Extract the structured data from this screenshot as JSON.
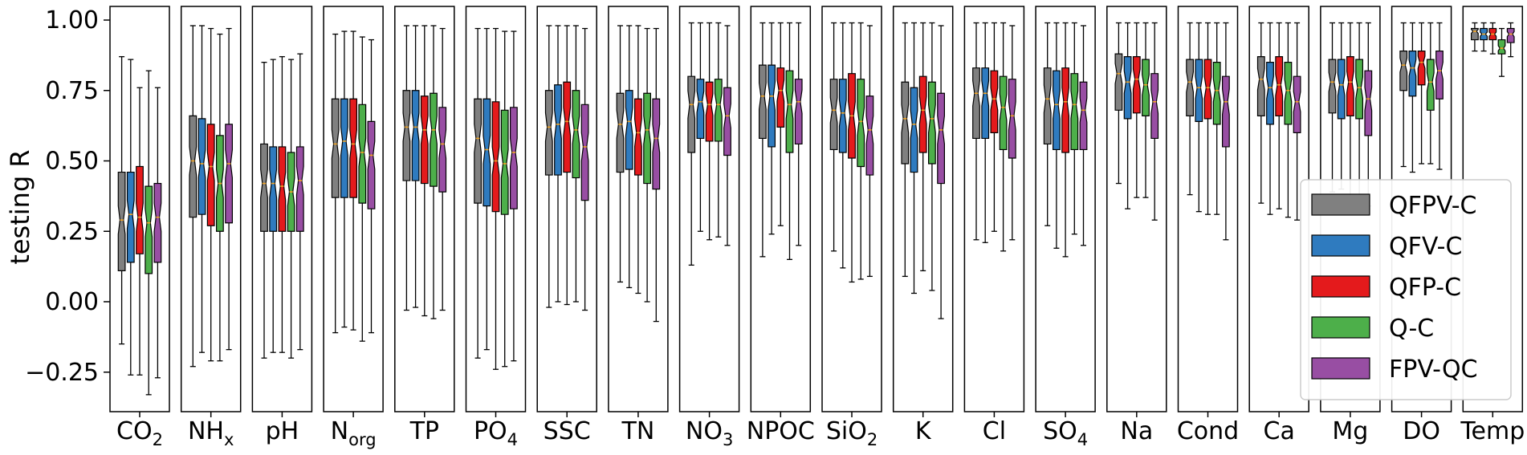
{
  "chart_data": {
    "type": "box",
    "ylabel": "testing R",
    "ylim": [
      -0.4,
      1.05
    ],
    "yticks": [
      "1.00",
      "0.75",
      "0.50",
      "0.25",
      "0.00",
      "−0.25"
    ],
    "ytick_values": [
      1.0,
      0.75,
      0.5,
      0.25,
      0.0,
      -0.25
    ],
    "legend_position": "right",
    "series": [
      {
        "name": "QFPV-C",
        "color": "#808080"
      },
      {
        "name": "QFV-C",
        "color": "#2f7bbf"
      },
      {
        "name": "QFP-C",
        "color": "#e41a1c"
      },
      {
        "name": "Q-C",
        "color": "#4daf4a"
      },
      {
        "name": "FPV-QC",
        "color": "#984ea3"
      }
    ],
    "categories": [
      {
        "base": "CO",
        "sub": "2",
        "boxes": [
          {
            "q1": 0.11,
            "med": 0.29,
            "q3": 0.46,
            "wlo": -0.15,
            "whi": 0.87
          },
          {
            "q1": 0.14,
            "med": 0.31,
            "q3": 0.46,
            "wlo": -0.26,
            "whi": 0.86
          },
          {
            "q1": 0.17,
            "med": 0.3,
            "q3": 0.48,
            "wlo": -0.26,
            "whi": 0.76
          },
          {
            "q1": 0.1,
            "med": 0.28,
            "q3": 0.41,
            "wlo": -0.33,
            "whi": 0.82
          },
          {
            "q1": 0.14,
            "med": 0.3,
            "q3": 0.42,
            "wlo": -0.27,
            "whi": 0.76
          }
        ]
      },
      {
        "base": "NH",
        "sub": "x",
        "boxes": [
          {
            "q1": 0.3,
            "med": 0.5,
            "q3": 0.66,
            "wlo": -0.23,
            "whi": 0.98
          },
          {
            "q1": 0.31,
            "med": 0.49,
            "q3": 0.65,
            "wlo": -0.18,
            "whi": 0.98
          },
          {
            "q1": 0.27,
            "med": 0.48,
            "q3": 0.63,
            "wlo": -0.21,
            "whi": 0.97
          },
          {
            "q1": 0.25,
            "med": 0.42,
            "q3": 0.59,
            "wlo": -0.21,
            "whi": 0.95
          },
          {
            "q1": 0.28,
            "med": 0.49,
            "q3": 0.63,
            "wlo": -0.17,
            "whi": 0.97
          }
        ]
      },
      {
        "base": "pH",
        "sub": "",
        "boxes": [
          {
            "q1": 0.25,
            "med": 0.42,
            "q3": 0.56,
            "wlo": -0.2,
            "whi": 0.85
          },
          {
            "q1": 0.25,
            "med": 0.42,
            "q3": 0.55,
            "wlo": -0.18,
            "whi": 0.86
          },
          {
            "q1": 0.25,
            "med": 0.41,
            "q3": 0.55,
            "wlo": -0.18,
            "whi": 0.87
          },
          {
            "q1": 0.25,
            "med": 0.39,
            "q3": 0.53,
            "wlo": -0.2,
            "whi": 0.86
          },
          {
            "q1": 0.25,
            "med": 0.43,
            "q3": 0.55,
            "wlo": -0.17,
            "whi": 0.88
          }
        ]
      },
      {
        "base": "N",
        "sub": "org",
        "boxes": [
          {
            "q1": 0.37,
            "med": 0.56,
            "q3": 0.72,
            "wlo": -0.11,
            "whi": 0.95
          },
          {
            "q1": 0.37,
            "med": 0.57,
            "q3": 0.72,
            "wlo": -0.09,
            "whi": 0.96
          },
          {
            "q1": 0.37,
            "med": 0.56,
            "q3": 0.72,
            "wlo": -0.1,
            "whi": 0.96
          },
          {
            "q1": 0.35,
            "med": 0.53,
            "q3": 0.7,
            "wlo": -0.14,
            "whi": 0.94
          },
          {
            "q1": 0.33,
            "med": 0.52,
            "q3": 0.64,
            "wlo": -0.11,
            "whi": 0.93
          }
        ]
      },
      {
        "base": "TP",
        "sub": "",
        "boxes": [
          {
            "q1": 0.43,
            "med": 0.62,
            "q3": 0.75,
            "wlo": -0.03,
            "whi": 0.98
          },
          {
            "q1": 0.43,
            "med": 0.62,
            "q3": 0.75,
            "wlo": -0.02,
            "whi": 0.98
          },
          {
            "q1": 0.42,
            "med": 0.61,
            "q3": 0.73,
            "wlo": -0.05,
            "whi": 0.98
          },
          {
            "q1": 0.41,
            "med": 0.61,
            "q3": 0.74,
            "wlo": -0.06,
            "whi": 0.98
          },
          {
            "q1": 0.39,
            "med": 0.56,
            "q3": 0.69,
            "wlo": -0.03,
            "whi": 0.97
          }
        ]
      },
      {
        "base": "PO",
        "sub": "4",
        "boxes": [
          {
            "q1": 0.35,
            "med": 0.58,
            "q3": 0.72,
            "wlo": -0.2,
            "whi": 0.97
          },
          {
            "q1": 0.34,
            "med": 0.54,
            "q3": 0.72,
            "wlo": -0.17,
            "whi": 0.97
          },
          {
            "q1": 0.32,
            "med": 0.5,
            "q3": 0.71,
            "wlo": -0.24,
            "whi": 0.97
          },
          {
            "q1": 0.31,
            "med": 0.49,
            "q3": 0.68,
            "wlo": -0.23,
            "whi": 0.96
          },
          {
            "q1": 0.33,
            "med": 0.53,
            "q3": 0.69,
            "wlo": -0.21,
            "whi": 0.96
          }
        ]
      },
      {
        "base": "SSC",
        "sub": "",
        "boxes": [
          {
            "q1": 0.45,
            "med": 0.62,
            "q3": 0.75,
            "wlo": -0.02,
            "whi": 0.98
          },
          {
            "q1": 0.45,
            "med": 0.63,
            "q3": 0.77,
            "wlo": 0.0,
            "whi": 0.98
          },
          {
            "q1": 0.46,
            "med": 0.64,
            "q3": 0.78,
            "wlo": -0.01,
            "whi": 0.98
          },
          {
            "q1": 0.44,
            "med": 0.61,
            "q3": 0.75,
            "wlo": 0.0,
            "whi": 0.98
          },
          {
            "q1": 0.36,
            "med": 0.55,
            "q3": 0.7,
            "wlo": -0.03,
            "whi": 0.97
          }
        ]
      },
      {
        "base": "TN",
        "sub": "",
        "boxes": [
          {
            "q1": 0.46,
            "med": 0.63,
            "q3": 0.74,
            "wlo": 0.07,
            "whi": 0.98
          },
          {
            "q1": 0.47,
            "med": 0.64,
            "q3": 0.75,
            "wlo": 0.05,
            "whi": 0.98
          },
          {
            "q1": 0.45,
            "med": 0.6,
            "q3": 0.72,
            "wlo": 0.03,
            "whi": 0.98
          },
          {
            "q1": 0.42,
            "med": 0.61,
            "q3": 0.74,
            "wlo": 0.0,
            "whi": 0.97
          },
          {
            "q1": 0.4,
            "med": 0.58,
            "q3": 0.72,
            "wlo": -0.07,
            "whi": 0.97
          }
        ]
      },
      {
        "base": "NO",
        "sub": "3",
        "boxes": [
          {
            "q1": 0.53,
            "med": 0.7,
            "q3": 0.8,
            "wlo": 0.13,
            "whi": 0.99
          },
          {
            "q1": 0.58,
            "med": 0.71,
            "q3": 0.79,
            "wlo": 0.25,
            "whi": 0.99
          },
          {
            "q1": 0.57,
            "med": 0.7,
            "q3": 0.78,
            "wlo": 0.22,
            "whi": 0.99
          },
          {
            "q1": 0.57,
            "med": 0.7,
            "q3": 0.79,
            "wlo": 0.23,
            "whi": 0.99
          },
          {
            "q1": 0.52,
            "med": 0.66,
            "q3": 0.76,
            "wlo": 0.2,
            "whi": 0.98
          }
        ]
      },
      {
        "base": "NPOC",
        "sub": "",
        "boxes": [
          {
            "q1": 0.58,
            "med": 0.73,
            "q3": 0.84,
            "wlo": 0.16,
            "whi": 0.99
          },
          {
            "q1": 0.55,
            "med": 0.73,
            "q3": 0.84,
            "wlo": 0.24,
            "whi": 0.99
          },
          {
            "q1": 0.62,
            "med": 0.75,
            "q3": 0.83,
            "wlo": 0.27,
            "whi": 0.99
          },
          {
            "q1": 0.53,
            "med": 0.7,
            "q3": 0.82,
            "wlo": 0.15,
            "whi": 0.99
          },
          {
            "q1": 0.56,
            "med": 0.71,
            "q3": 0.79,
            "wlo": 0.2,
            "whi": 0.99
          }
        ]
      },
      {
        "base": "SiO",
        "sub": "2",
        "boxes": [
          {
            "q1": 0.54,
            "med": 0.68,
            "q3": 0.79,
            "wlo": 0.18,
            "whi": 0.99
          },
          {
            "q1": 0.53,
            "med": 0.67,
            "q3": 0.79,
            "wlo": 0.12,
            "whi": 0.99
          },
          {
            "q1": 0.51,
            "med": 0.66,
            "q3": 0.81,
            "wlo": 0.07,
            "whi": 0.99
          },
          {
            "q1": 0.48,
            "med": 0.64,
            "q3": 0.79,
            "wlo": 0.08,
            "whi": 0.99
          },
          {
            "q1": 0.45,
            "med": 0.61,
            "q3": 0.73,
            "wlo": 0.09,
            "whi": 0.98
          }
        ]
      },
      {
        "base": "K",
        "sub": "",
        "boxes": [
          {
            "q1": 0.49,
            "med": 0.65,
            "q3": 0.78,
            "wlo": 0.09,
            "whi": 0.99
          },
          {
            "q1": 0.46,
            "med": 0.63,
            "q3": 0.76,
            "wlo": 0.03,
            "whi": 0.99
          },
          {
            "q1": 0.53,
            "med": 0.68,
            "q3": 0.8,
            "wlo": 0.11,
            "whi": 0.99
          },
          {
            "q1": 0.49,
            "med": 0.65,
            "q3": 0.78,
            "wlo": 0.04,
            "whi": 0.99
          },
          {
            "q1": 0.42,
            "med": 0.61,
            "q3": 0.74,
            "wlo": -0.06,
            "whi": 0.98
          }
        ]
      },
      {
        "base": "Cl",
        "sub": "",
        "boxes": [
          {
            "q1": 0.58,
            "med": 0.74,
            "q3": 0.83,
            "wlo": 0.22,
            "whi": 0.99
          },
          {
            "q1": 0.58,
            "med": 0.74,
            "q3": 0.83,
            "wlo": 0.21,
            "whi": 0.99
          },
          {
            "q1": 0.6,
            "med": 0.72,
            "q3": 0.82,
            "wlo": 0.25,
            "whi": 0.99
          },
          {
            "q1": 0.54,
            "med": 0.69,
            "q3": 0.8,
            "wlo": 0.18,
            "whi": 0.99
          },
          {
            "q1": 0.51,
            "med": 0.66,
            "q3": 0.79,
            "wlo": 0.22,
            "whi": 0.98
          }
        ]
      },
      {
        "base": "SO",
        "sub": "4",
        "boxes": [
          {
            "q1": 0.56,
            "med": 0.72,
            "q3": 0.83,
            "wlo": 0.27,
            "whi": 0.99
          },
          {
            "q1": 0.54,
            "med": 0.7,
            "q3": 0.82,
            "wlo": 0.19,
            "whi": 0.99
          },
          {
            "q1": 0.53,
            "med": 0.71,
            "q3": 0.83,
            "wlo": 0.16,
            "whi": 0.99
          },
          {
            "q1": 0.54,
            "med": 0.7,
            "q3": 0.81,
            "wlo": 0.24,
            "whi": 0.99
          },
          {
            "q1": 0.54,
            "med": 0.68,
            "q3": 0.78,
            "wlo": 0.2,
            "whi": 0.98
          }
        ]
      },
      {
        "base": "Na",
        "sub": "",
        "boxes": [
          {
            "q1": 0.68,
            "med": 0.81,
            "q3": 0.88,
            "wlo": 0.42,
            "whi": 0.99
          },
          {
            "q1": 0.65,
            "med": 0.78,
            "q3": 0.87,
            "wlo": 0.33,
            "whi": 0.99
          },
          {
            "q1": 0.67,
            "med": 0.79,
            "q3": 0.87,
            "wlo": 0.37,
            "whi": 0.99
          },
          {
            "q1": 0.66,
            "med": 0.77,
            "q3": 0.86,
            "wlo": 0.37,
            "whi": 0.99
          },
          {
            "q1": 0.58,
            "med": 0.71,
            "q3": 0.81,
            "wlo": 0.29,
            "whi": 0.99
          }
        ]
      },
      {
        "base": "Cond",
        "sub": "",
        "boxes": [
          {
            "q1": 0.66,
            "med": 0.78,
            "q3": 0.86,
            "wlo": 0.38,
            "whi": 0.99
          },
          {
            "q1": 0.64,
            "med": 0.76,
            "q3": 0.86,
            "wlo": 0.32,
            "whi": 0.99
          },
          {
            "q1": 0.65,
            "med": 0.76,
            "q3": 0.86,
            "wlo": 0.31,
            "whi": 0.99
          },
          {
            "q1": 0.63,
            "med": 0.75,
            "q3": 0.85,
            "wlo": 0.31,
            "whi": 0.99
          },
          {
            "q1": 0.55,
            "med": 0.71,
            "q3": 0.8,
            "wlo": 0.22,
            "whi": 0.99
          }
        ]
      },
      {
        "base": "Ca",
        "sub": "",
        "boxes": [
          {
            "q1": 0.66,
            "med": 0.79,
            "q3": 0.87,
            "wlo": 0.35,
            "whi": 0.99
          },
          {
            "q1": 0.63,
            "med": 0.76,
            "q3": 0.85,
            "wlo": 0.31,
            "whi": 0.99
          },
          {
            "q1": 0.66,
            "med": 0.77,
            "q3": 0.87,
            "wlo": 0.33,
            "whi": 0.99
          },
          {
            "q1": 0.63,
            "med": 0.75,
            "q3": 0.85,
            "wlo": 0.3,
            "whi": 0.99
          },
          {
            "q1": 0.6,
            "med": 0.71,
            "q3": 0.8,
            "wlo": 0.29,
            "whi": 0.99
          }
        ]
      },
      {
        "base": "Mg",
        "sub": "",
        "boxes": [
          {
            "q1": 0.67,
            "med": 0.78,
            "q3": 0.86,
            "wlo": 0.39,
            "whi": 0.99
          },
          {
            "q1": 0.65,
            "med": 0.77,
            "q3": 0.86,
            "wlo": 0.4,
            "whi": 0.99
          },
          {
            "q1": 0.66,
            "med": 0.78,
            "q3": 0.87,
            "wlo": 0.38,
            "whi": 0.99
          },
          {
            "q1": 0.65,
            "med": 0.76,
            "q3": 0.86,
            "wlo": 0.33,
            "whi": 0.99
          },
          {
            "q1": 0.59,
            "med": 0.72,
            "q3": 0.82,
            "wlo": 0.34,
            "whi": 0.99
          }
        ]
      },
      {
        "base": "DO",
        "sub": "",
        "boxes": [
          {
            "q1": 0.75,
            "med": 0.84,
            "q3": 0.89,
            "wlo": 0.48,
            "whi": 0.99
          },
          {
            "q1": 0.73,
            "med": 0.83,
            "q3": 0.89,
            "wlo": 0.46,
            "whi": 0.99
          },
          {
            "q1": 0.77,
            "med": 0.85,
            "q3": 0.89,
            "wlo": 0.49,
            "whi": 0.99
          },
          {
            "q1": 0.68,
            "med": 0.78,
            "q3": 0.86,
            "wlo": 0.49,
            "whi": 0.99
          },
          {
            "q1": 0.72,
            "med": 0.82,
            "q3": 0.89,
            "wlo": 0.47,
            "whi": 0.99
          }
        ]
      },
      {
        "base": "Temp",
        "sub": "",
        "boxes": [
          {
            "q1": 0.93,
            "med": 0.96,
            "q3": 0.97,
            "wlo": 0.89,
            "whi": 0.99
          },
          {
            "q1": 0.93,
            "med": 0.95,
            "q3": 0.97,
            "wlo": 0.89,
            "whi": 0.99
          },
          {
            "q1": 0.93,
            "med": 0.95,
            "q3": 0.97,
            "wlo": 0.88,
            "whi": 0.99
          },
          {
            "q1": 0.88,
            "med": 0.9,
            "q3": 0.93,
            "wlo": 0.8,
            "whi": 0.97
          },
          {
            "q1": 0.92,
            "med": 0.95,
            "q3": 0.97,
            "wlo": 0.87,
            "whi": 0.99
          }
        ]
      }
    ]
  }
}
